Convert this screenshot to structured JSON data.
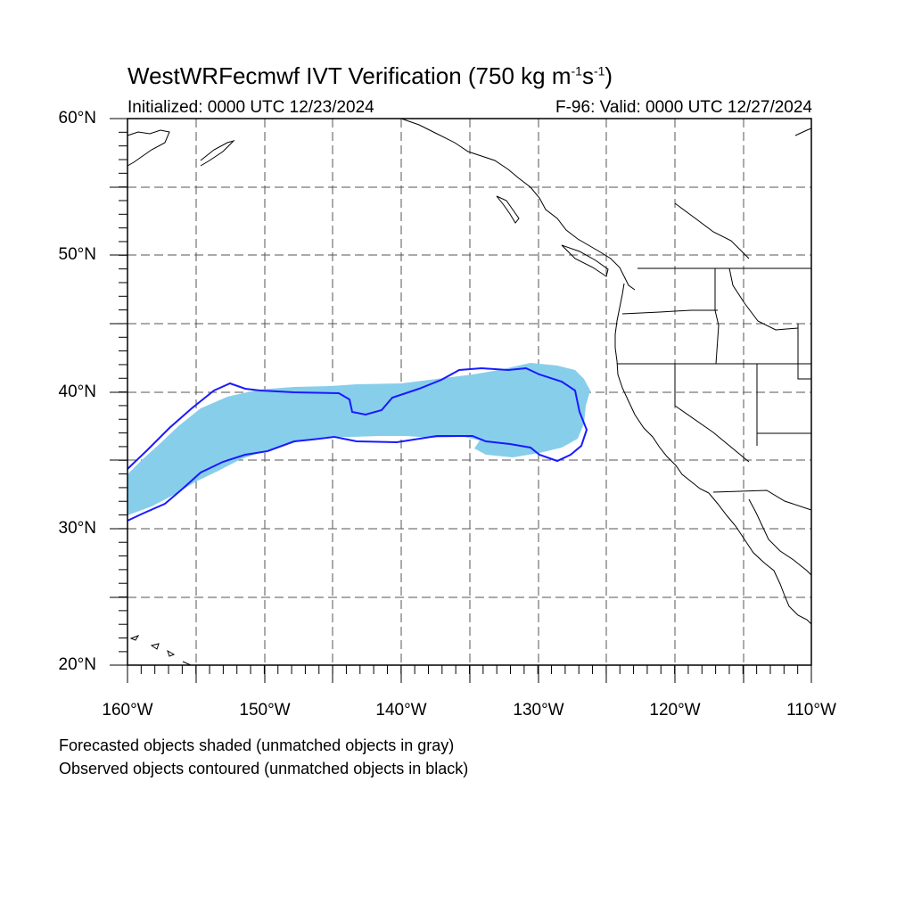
{
  "title": {
    "main": "WestWRFecmwf IVT Verification (750 kg m",
    "sup1": "-1",
    "mid": "s",
    "sup2": "-1",
    "end": ")"
  },
  "initialized": "Initialized: 0000 UTC 12/23/2024",
  "valid": "F-96: Valid: 0000 UTC 12/27/2024",
  "lat_labels": [
    "60°N",
    "50°N",
    "40°N",
    "30°N",
    "20°N"
  ],
  "lon_labels": [
    "160°W",
    "150°W",
    "140°W",
    "130°W",
    "120°W",
    "110°W"
  ],
  "legend": {
    "line1": "Forecasted objects shaded (unmatched objects in gray)",
    "line2": "Observed objects contoured (unmatched objects in black)"
  },
  "colors": {
    "forecast_fill": "#87ceeb",
    "observed_contour": "#1a1aff",
    "coastline": "#000000",
    "grid": "#555555"
  },
  "extent": {
    "lon_min": -160,
    "lon_max": -110,
    "lat_min": 20,
    "lat_max": 60
  }
}
